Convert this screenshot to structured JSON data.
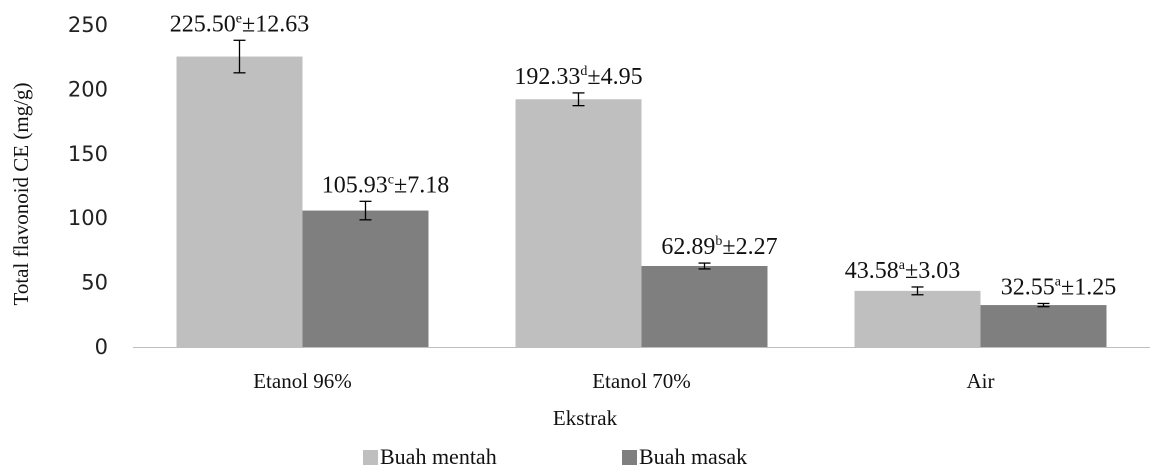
{
  "chart_data": {
    "type": "bar",
    "categories": [
      "Etanol 96%",
      "Etanol 70%",
      "Air"
    ],
    "series": [
      {
        "name": "Buah mentah",
        "color": "#bfbfbf",
        "values": [
          225.5,
          192.33,
          43.58
        ],
        "errors": [
          12.63,
          4.95,
          3.03
        ],
        "labels": [
          {
            "value": "225.50",
            "sup": "e",
            "err": "±12.63"
          },
          {
            "value": "192.33",
            "sup": "d",
            "err": "±4.95"
          },
          {
            "value": "43.58",
            "sup": "a",
            "err": "±3.03"
          }
        ]
      },
      {
        "name": "Buah masak",
        "color": "#7f7f7f",
        "values": [
          105.93,
          62.89,
          32.55
        ],
        "errors": [
          7.18,
          2.27,
          1.25
        ],
        "labels": [
          {
            "value": "105.93",
            "sup": "c",
            "err": "±7.18"
          },
          {
            "value": "62.89",
            "sup": "b",
            "err": "±2.27"
          },
          {
            "value": "32.55",
            "sup": "a",
            "err": "±1.25"
          }
        ]
      }
    ],
    "xlabel": "Ekstrak",
    "ylabel": "Total flavonoid CE (mg/g)",
    "ylim": [
      0,
      250
    ],
    "yticks": [
      0,
      50,
      100,
      150,
      200,
      250
    ],
    "grid": false,
    "legend_position": "bottom"
  }
}
